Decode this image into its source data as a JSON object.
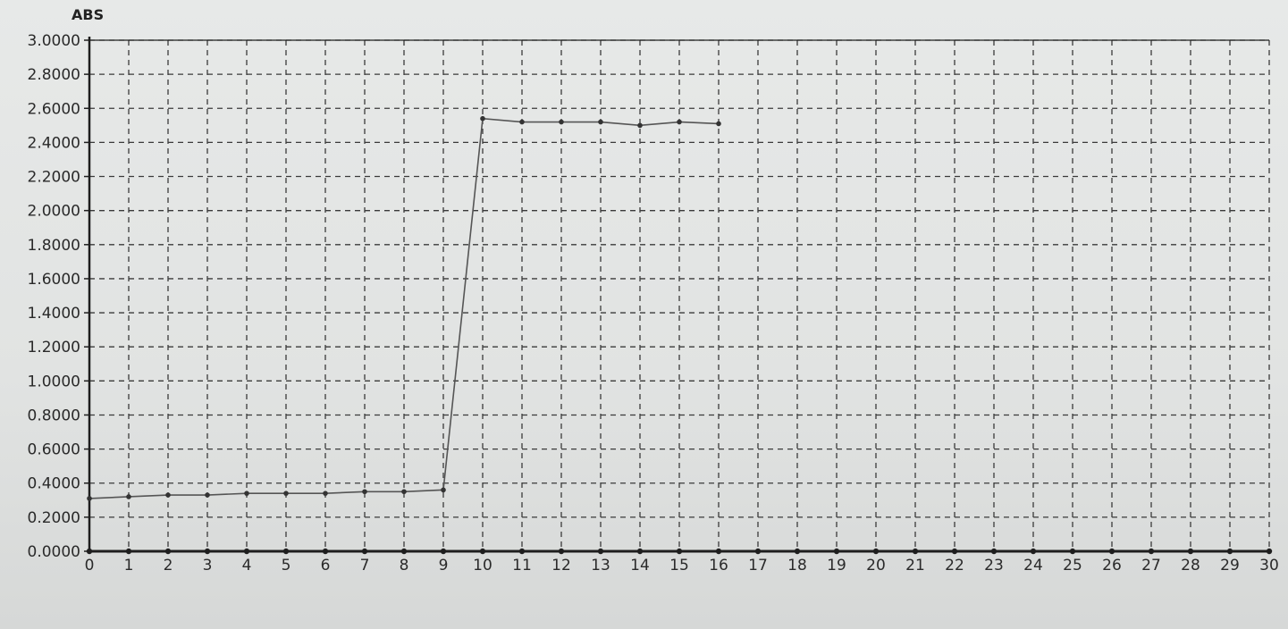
{
  "chart_data": {
    "type": "line",
    "ylabel": "ABS",
    "xlabel": "",
    "xlim": [
      0,
      30
    ],
    "ylim": [
      0,
      3.0
    ],
    "grid": true,
    "x_ticks": [
      "0",
      "1",
      "2",
      "3",
      "4",
      "5",
      "6",
      "7",
      "8",
      "9",
      "10",
      "11",
      "12",
      "13",
      "14",
      "15",
      "16",
      "17",
      "18",
      "19",
      "20",
      "21",
      "22",
      "23",
      "24",
      "25",
      "26",
      "27",
      "28",
      "29",
      "30"
    ],
    "y_ticks": [
      "0.0000",
      "0.2000",
      "0.4000",
      "0.6000",
      "0.8000",
      "1.0000",
      "1.2000",
      "1.4000",
      "1.6000",
      "1.8000",
      "2.0000",
      "2.2000",
      "2.4000",
      "2.6000",
      "2.8000",
      "3.0000"
    ],
    "series": [
      {
        "x": [
          0,
          1,
          2,
          3,
          4,
          5,
          6,
          7,
          8,
          9,
          10,
          11,
          12,
          13,
          14,
          15,
          16
        ],
        "values": [
          0.31,
          0.32,
          0.33,
          0.33,
          0.34,
          0.34,
          0.34,
          0.35,
          0.35,
          0.36,
          2.54,
          2.52,
          2.52,
          2.52,
          2.5,
          2.52,
          2.51
        ]
      }
    ],
    "colors": {
      "line": "#555555",
      "grid": "#3a3a3a",
      "axis": "#1e1e1e",
      "marker": "#333333"
    }
  }
}
